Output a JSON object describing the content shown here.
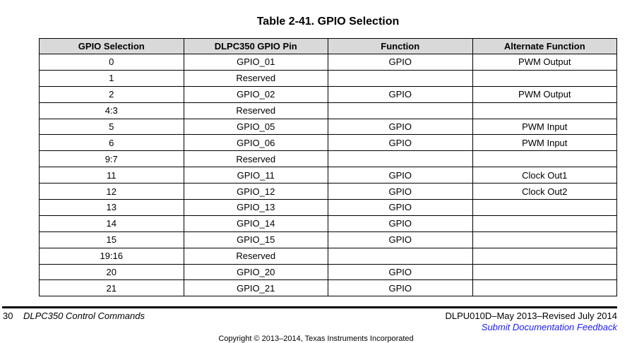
{
  "title": "Table 2-41. GPIO Selection",
  "table": {
    "headers": [
      "GPIO Selection",
      "DLPC350 GPIO Pin",
      "Function",
      "Alternate Function"
    ],
    "rows": [
      [
        "0",
        "GPIO_01",
        "GPIO",
        "PWM Output"
      ],
      [
        "1",
        "Reserved",
        "",
        ""
      ],
      [
        "2",
        "GPIO_02",
        "GPIO",
        "PWM Output"
      ],
      [
        "4:3",
        "Reserved",
        "",
        ""
      ],
      [
        "5",
        "GPIO_05",
        "GPIO",
        "PWM Input"
      ],
      [
        "6",
        "GPIO_06",
        "GPIO",
        "PWM Input"
      ],
      [
        "9:7",
        "Reserved",
        "",
        ""
      ],
      [
        "11",
        "GPIO_11",
        "GPIO",
        "Clock Out1"
      ],
      [
        "12",
        "GPIO_12",
        "GPIO",
        "Clock Out2"
      ],
      [
        "13",
        "GPIO_13",
        "GPIO",
        ""
      ],
      [
        "14",
        "GPIO_14",
        "GPIO",
        ""
      ],
      [
        "15",
        "GPIO_15",
        "GPIO",
        ""
      ],
      [
        "19:16",
        "Reserved",
        "",
        ""
      ],
      [
        "20",
        "GPIO_20",
        "GPIO",
        ""
      ],
      [
        "21",
        "GPIO_21",
        "GPIO",
        ""
      ]
    ]
  },
  "footer": {
    "page": "30",
    "section": "DLPC350 Control Commands",
    "doc": "DLPU010D–May 2013–Revised July 2014",
    "feedback": "Submit Documentation Feedback",
    "copyright": "Copyright © 2013–2014, Texas Instruments Incorporated",
    "link_color": "#1a1aff"
  }
}
